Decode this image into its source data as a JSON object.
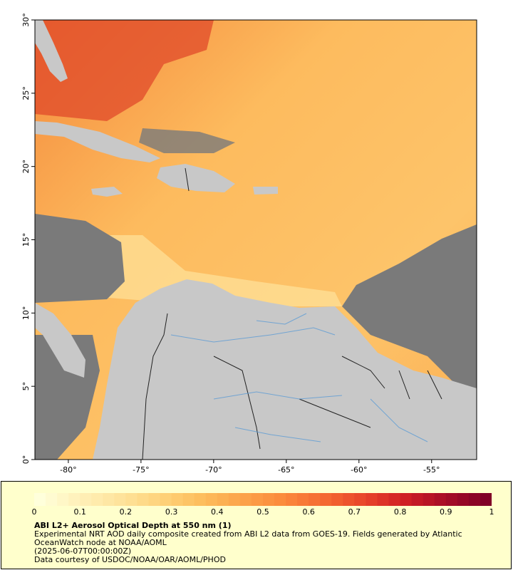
{
  "map": {
    "lat_labels": [
      "30°",
      "25°",
      "20°",
      "15°",
      "10°",
      "5°",
      "0°"
    ],
    "lon_labels": [
      "-80°",
      "-75°",
      "-70°",
      "-65°",
      "-60°",
      "-55°"
    ],
    "extent": {
      "lon_min": -82.3,
      "lon_max": -51.9,
      "lat_min": 0,
      "lat_max": 30
    },
    "colors": {
      "land": "#c8c8c8",
      "nodata": "#7a7a7a",
      "border": "#222222",
      "river": "#5b9bd5"
    },
    "cities_or_regions": []
  },
  "legend": {
    "title": "ABI L2+ Aerosol Optical Depth at 550 nm (1)",
    "description": "Experimental NRT AOD daily composite created from ABI L2 data from GOES-19. Fields generated by Atlantic OceanWatch node at NOAA/AOML",
    "timestamp": "(2025-06-07T00:00:00Z)",
    "credit": "Data courtesy of USDOC/NOAA/OAR/AOML/PHOD",
    "tick_labels": [
      "0",
      "0.1",
      "0.2",
      "0.3",
      "0.4",
      "0.5",
      "0.6",
      "0.7",
      "0.8",
      "0.9",
      "1"
    ],
    "scale_min": 0,
    "scale_max": 1,
    "colors": [
      "#ffffdb",
      "#fff0b8",
      "#fee39b",
      "#fed27a",
      "#fdbd5c",
      "#fca34a",
      "#fb8a3c",
      "#f56a32",
      "#e8452a",
      "#d01f24",
      "#a70d26",
      "#800026"
    ]
  }
}
